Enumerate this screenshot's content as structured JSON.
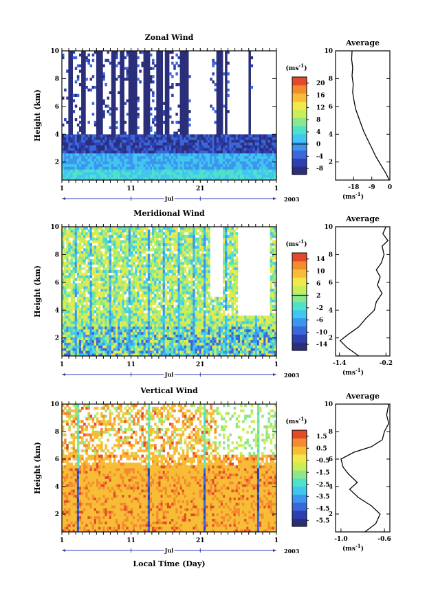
{
  "chart_data": [
    {
      "type": "heatmap",
      "title": "Zonal Wind",
      "ylabel": "Height (km)",
      "ylim": [
        0.7,
        10
      ],
      "yticks": [
        "2",
        "4",
        "6",
        "8",
        "10"
      ],
      "xticks": [
        "1",
        "11",
        "21",
        "1"
      ],
      "month_label": "Jul",
      "year_label": "2003",
      "colorbar": {
        "unit": "(ms",
        "unit_exp": "-1",
        "unit_close": ")",
        "labels": [
          "20",
          "16",
          "12",
          "8",
          "4",
          "0",
          "-4",
          "-8"
        ],
        "min": -10,
        "max": 22
      },
      "average": {
        "title": "Average",
        "unit": "(ms",
        "unit_exp": "-1",
        "unit_close": ")",
        "xticks": [
          "-18",
          "-9",
          "0"
        ],
        "xlim": [
          -27,
          0
        ],
        "profile": [
          [
            -0.3,
            0.7
          ],
          [
            -2,
            1.2
          ],
          [
            -4.5,
            1.8
          ],
          [
            -7,
            2.4
          ],
          [
            -9,
            3.0
          ],
          [
            -11,
            3.6
          ],
          [
            -13,
            4.2
          ],
          [
            -15,
            5.0
          ],
          [
            -17,
            5.8
          ],
          [
            -17.8,
            6.4
          ],
          [
            -18.5,
            7.0
          ],
          [
            -18.2,
            7.6
          ],
          [
            -18.8,
            8.2
          ],
          [
            -18.5,
            8.8
          ],
          [
            -19,
            9.4
          ],
          [
            -18.8,
            10
          ]
        ]
      }
    },
    {
      "type": "heatmap",
      "title": "Meridional Wind",
      "ylabel": "Height (km)",
      "ylim": [
        0.7,
        10
      ],
      "yticks": [
        "2",
        "4",
        "6",
        "8",
        "10"
      ],
      "xticks": [
        "1",
        "11",
        "21",
        "1"
      ],
      "month_label": "Jul",
      "year_label": "2003",
      "colorbar": {
        "unit": "(ms",
        "unit_exp": "-1",
        "unit_close": ")",
        "labels": [
          "14",
          "10",
          "6",
          "2",
          "-2",
          "-6",
          "-10",
          "-14"
        ],
        "min": -16,
        "max": 16
      },
      "average": {
        "title": "Average",
        "unit": "(ms",
        "unit_exp": "-1",
        "unit_close": ")",
        "xticks": [
          "-1.4",
          "-0.2"
        ],
        "xlim": [
          -1.5,
          -0.1
        ],
        "profile": [
          [
            -0.9,
            0.7
          ],
          [
            -1.2,
            1.3
          ],
          [
            -1.38,
            1.8
          ],
          [
            -1.2,
            2.2
          ],
          [
            -0.9,
            2.8
          ],
          [
            -0.72,
            3.4
          ],
          [
            -0.5,
            4.0
          ],
          [
            -0.45,
            4.6
          ],
          [
            -0.3,
            5.2
          ],
          [
            -0.42,
            5.8
          ],
          [
            -0.35,
            6.4
          ],
          [
            -0.45,
            6.9
          ],
          [
            -0.32,
            7.4
          ],
          [
            -0.25,
            8.0
          ],
          [
            -0.3,
            8.6
          ],
          [
            -0.15,
            9.0
          ],
          [
            -0.28,
            9.5
          ],
          [
            -0.2,
            10
          ]
        ]
      }
    },
    {
      "type": "heatmap",
      "title": "Vertical Wind",
      "ylabel": "Height (km)",
      "xlabel": "Local Time (Day)",
      "ylim": [
        0.7,
        10
      ],
      "yticks": [
        "2",
        "4",
        "6",
        "8",
        "10"
      ],
      "xticks": [
        "1",
        "11",
        "21",
        "1"
      ],
      "month_label": "Jul",
      "year_label": "2003",
      "colorbar": {
        "unit": "(ms",
        "unit_exp": "-1",
        "unit_close": ")",
        "labels": [
          "1.5",
          "0.5",
          "-0.5",
          "-1.5",
          "-2.5",
          "-3.5",
          "-4.5",
          "-5.5"
        ],
        "min": -6,
        "max": 2
      },
      "average": {
        "title": "Average",
        "unit": "(ms",
        "unit_exp": "-1",
        "unit_close": ")",
        "xticks": [
          "-1.0",
          "-0.6"
        ],
        "xlim": [
          -1.05,
          -0.55
        ],
        "profile": [
          [
            -0.78,
            0.7
          ],
          [
            -0.68,
            1.3
          ],
          [
            -0.64,
            2.0
          ],
          [
            -0.72,
            2.6
          ],
          [
            -0.84,
            3.2
          ],
          [
            -0.92,
            3.8
          ],
          [
            -0.85,
            4.3
          ],
          [
            -0.93,
            4.9
          ],
          [
            -0.98,
            5.4
          ],
          [
            -1.0,
            6.0
          ],
          [
            -0.88,
            6.5
          ],
          [
            -0.72,
            6.9
          ],
          [
            -0.62,
            7.4
          ],
          [
            -0.6,
            8.0
          ],
          [
            -0.56,
            8.6
          ],
          [
            -0.58,
            9.2
          ],
          [
            -0.56,
            10
          ]
        ]
      }
    }
  ],
  "colors": {
    "scale": [
      "#2b2f7a",
      "#2e3fb2",
      "#3a67d9",
      "#3c96ee",
      "#40c6f0",
      "#4fe2c8",
      "#8ee68c",
      "#c9ee5a",
      "#f2e84a",
      "#f7bd37",
      "#f48b2f",
      "#e34a2a"
    ],
    "missing": "#ffffff"
  }
}
